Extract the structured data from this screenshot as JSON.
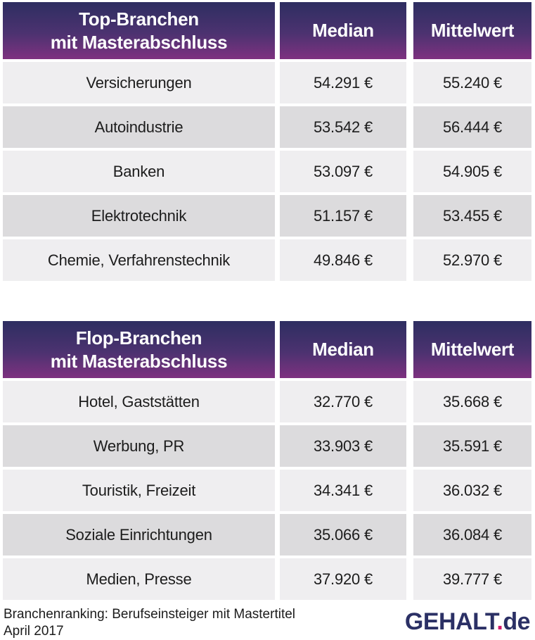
{
  "tables": [
    {
      "title_line1": "Top-Branchen",
      "title_line2": "mit Masterabschluss",
      "col_median": "Median",
      "col_mittelwert": "Mittelwert",
      "rows": [
        {
          "label": "Versicherungen",
          "median": "54.291 €",
          "mittelwert": "55.240 €"
        },
        {
          "label": "Autoindustrie",
          "median": "53.542 €",
          "mittelwert": "56.444 €"
        },
        {
          "label": "Banken",
          "median": "53.097 €",
          "mittelwert": "54.905 €"
        },
        {
          "label": "Elektrotechnik",
          "median": "51.157 €",
          "mittelwert": "53.455 €"
        },
        {
          "label": "Chemie, Verfahrenstechnik",
          "median": "49.846 €",
          "mittelwert": "52.970 €"
        }
      ]
    },
    {
      "title_line1": "Flop-Branchen",
      "title_line2": "mit Masterabschluss",
      "col_median": "Median",
      "col_mittelwert": "Mittelwert",
      "rows": [
        {
          "label": "Hotel, Gaststätten",
          "median": "32.770 €",
          "mittelwert": "35.668 €"
        },
        {
          "label": "Werbung, PR",
          "median": "33.903 €",
          "mittelwert": "35.591 €"
        },
        {
          "label": "Touristik, Freizeit",
          "median": "34.341 €",
          "mittelwert": "36.032 €"
        },
        {
          "label": "Soziale Einrichtungen",
          "median": "35.066 €",
          "mittelwert": "36.084 €"
        },
        {
          "label": "Medien, Presse",
          "median": "37.920 €",
          "mittelwert": "39.777 €"
        }
      ]
    }
  ],
  "footer": {
    "caption_line1": "Branchenranking: Berufseinsteiger mit Mastertitel",
    "caption_line2": "April 2017",
    "logo_name": "GEHALT",
    "logo_dot": ".",
    "logo_tld": "de"
  },
  "colors": {
    "header_gradient_top": "#2e2e61",
    "header_gradient_bottom": "#7e3180",
    "row_light": "#efeef0",
    "row_dark": "#dcdbdd",
    "logo_navy": "#2b3065",
    "logo_pink": "#d4186d",
    "text": "#1c1c1c"
  },
  "chart_data": [
    {
      "type": "table",
      "title": "Top-Branchen mit Masterabschluss",
      "columns": [
        "Branche",
        "Median",
        "Mittelwert"
      ],
      "unit": "EUR",
      "rows": [
        [
          "Versicherungen",
          54291,
          55240
        ],
        [
          "Autoindustrie",
          53542,
          56444
        ],
        [
          "Banken",
          53097,
          54905
        ],
        [
          "Elektrotechnik",
          51157,
          53455
        ],
        [
          "Chemie, Verfahrenstechnik",
          49846,
          52970
        ]
      ]
    },
    {
      "type": "table",
      "title": "Flop-Branchen mit Masterabschluss",
      "columns": [
        "Branche",
        "Median",
        "Mittelwert"
      ],
      "unit": "EUR",
      "rows": [
        [
          "Hotel, Gaststätten",
          32770,
          35668
        ],
        [
          "Werbung, PR",
          33903,
          35591
        ],
        [
          "Touristik, Freizeit",
          34341,
          36032
        ],
        [
          "Soziale Einrichtungen",
          35066,
          36084
        ],
        [
          "Medien, Presse",
          37920,
          39777
        ]
      ]
    }
  ]
}
